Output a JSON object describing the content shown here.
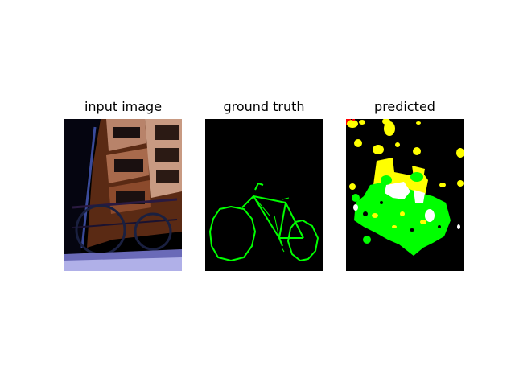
{
  "figure": {
    "panels": [
      {
        "id": "input",
        "title": "input image"
      },
      {
        "id": "ground_truth",
        "title": "ground truth"
      },
      {
        "id": "predicted",
        "title": "predicted"
      }
    ]
  },
  "colors": {
    "background": "#000000",
    "mask_green": "#00ff00",
    "mask_yellow": "#ffff00",
    "mask_white": "#ffffff",
    "mask_red": "#ff0000"
  }
}
